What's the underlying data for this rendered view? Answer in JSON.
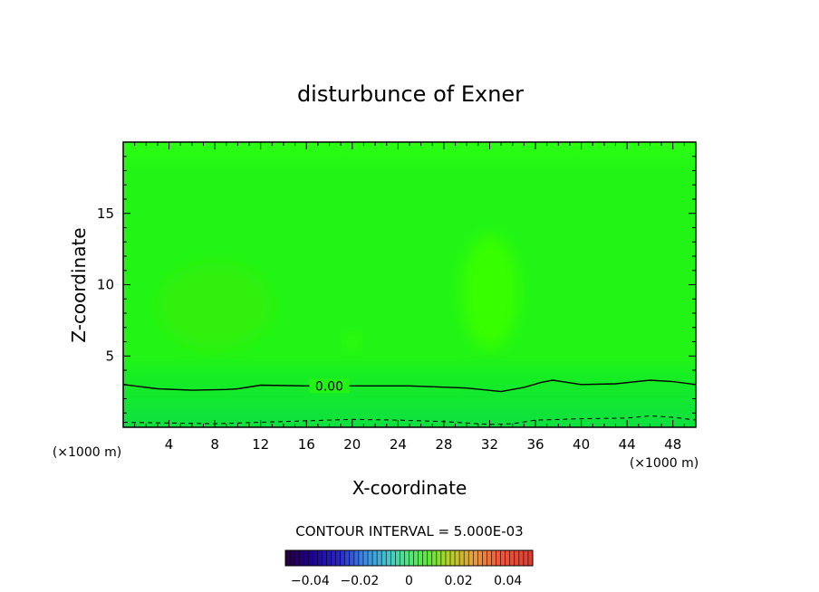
{
  "chart_data": {
    "type": "heatmap",
    "title": "disturbunce of Exner",
    "xlabel": "X-coordinate",
    "ylabel": "Z-coordinate",
    "x_unit_label_left": "(×1000 m)",
    "x_unit_label_right": "(×1000 m)",
    "xlim": [
      0,
      50
    ],
    "ylim": [
      0,
      20
    ],
    "x_ticks": [
      4,
      8,
      12,
      16,
      20,
      24,
      28,
      32,
      36,
      40,
      44,
      48
    ],
    "x_tick_labels": [
      "4",
      "8",
      "12",
      "16",
      "20",
      "24",
      "28",
      "32",
      "36",
      "40",
      "44",
      "48"
    ],
    "y_ticks": [
      5,
      10,
      15
    ],
    "y_tick_labels": [
      "5",
      "10",
      "15"
    ],
    "contour_zero": {
      "label": "0.00",
      "x": [
        0,
        3,
        6,
        9,
        10,
        12,
        16,
        20,
        25,
        30,
        33,
        35,
        36.5,
        37.5,
        40,
        43,
        46,
        48,
        50
      ],
      "z": [
        3.0,
        2.7,
        2.6,
        2.65,
        2.7,
        2.95,
        2.9,
        2.9,
        2.9,
        2.75,
        2.5,
        2.8,
        3.15,
        3.3,
        3.0,
        3.05,
        3.3,
        3.2,
        3.0
      ]
    },
    "contour_negative": {
      "style": "dashed",
      "x": [
        0,
        4,
        8,
        12,
        16,
        20,
        24,
        28,
        32,
        34,
        36,
        40,
        44,
        46,
        48,
        50
      ],
      "z": [
        0.35,
        0.3,
        0.25,
        0.35,
        0.45,
        0.55,
        0.5,
        0.4,
        0.2,
        0.25,
        0.5,
        0.6,
        0.65,
        0.8,
        0.7,
        0.5
      ]
    },
    "blobs": [
      {
        "x": 8,
        "z": 8.5,
        "rx": 5,
        "rz": 3,
        "color": "#30f010"
      },
      {
        "x": 32,
        "z": 9.5,
        "rx": 2.5,
        "rz": 4,
        "color": "#38ff00"
      },
      {
        "x": 20,
        "z": 6,
        "rx": 0.5,
        "rz": 0.5,
        "color": "#38ff00"
      }
    ],
    "colors": {
      "field": "#22f515",
      "upper_band": "#2aff10",
      "lower_band": "#10e63a"
    },
    "contour_interval_text": "CONTOUR INTERVAL = 5.000E-03",
    "colorbar": {
      "min": -0.05,
      "max": 0.05,
      "tick_values": [
        -0.04,
        -0.02,
        0,
        0.02,
        0.04
      ],
      "tick_labels": [
        "−0.04",
        "−0.02",
        "0",
        "0.02",
        "0.04"
      ]
    }
  }
}
